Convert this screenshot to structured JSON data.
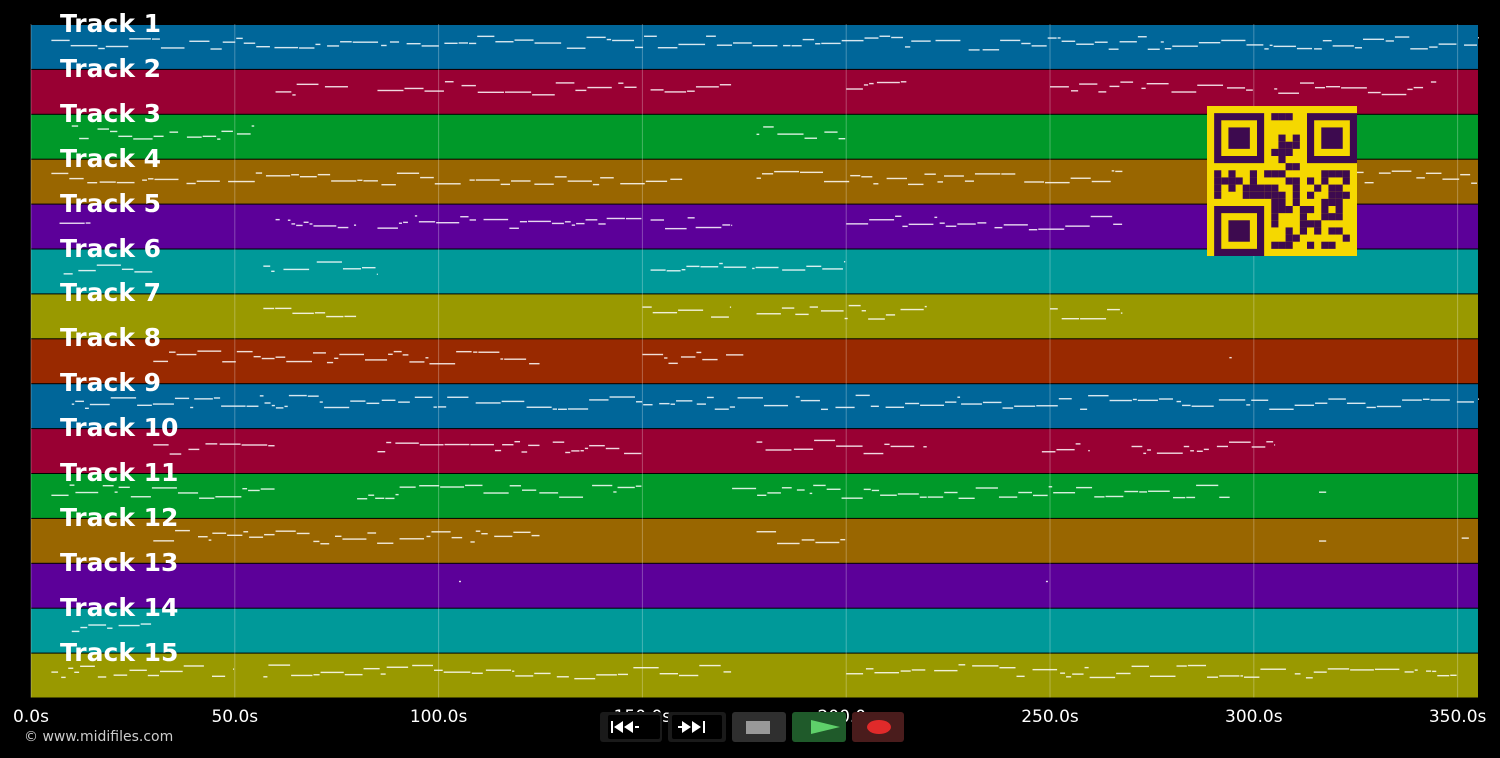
{
  "tracks": [
    {
      "label": "Track 1",
      "color": "#006699"
    },
    {
      "label": "Track 2",
      "color": "#990033"
    },
    {
      "label": "Track 3",
      "color": "#009929"
    },
    {
      "label": "Track 4",
      "color": "#996600"
    },
    {
      "label": "Track 5",
      "color": "#5c0099"
    },
    {
      "label": "Track 6",
      "color": "#009999"
    },
    {
      "label": "Track 7",
      "color": "#999900"
    },
    {
      "label": "Track 8",
      "color": "#992900"
    },
    {
      "label": "Track 9",
      "color": "#006699"
    },
    {
      "label": "Track 10",
      "color": "#990033"
    },
    {
      "label": "Track 11",
      "color": "#009929"
    },
    {
      "label": "Track 12",
      "color": "#996600"
    },
    {
      "label": "Track 13",
      "color": "#5c0099"
    },
    {
      "label": "Track 14",
      "color": "#009999"
    },
    {
      "label": "Track 15",
      "color": "#999900"
    }
  ],
  "timeline": {
    "ticks": [
      "0.0s",
      "50.0s",
      "100.0s",
      "150.0s",
      "200.0s",
      "250.0s",
      "300.0s",
      "350.0s"
    ],
    "tick_seconds": [
      0,
      50,
      100,
      150,
      200,
      250,
      300,
      350
    ],
    "max_seconds": 355
  },
  "copyright": "© www.midifiles.com",
  "controls": [
    {
      "name": "rewind-button",
      "icon": "rewind-icon"
    },
    {
      "name": "fast-forward-button",
      "icon": "fast-forward-icon"
    },
    {
      "name": "stop-button",
      "icon": "stop-icon"
    },
    {
      "name": "play-button",
      "icon": "play-icon"
    },
    {
      "name": "record-button",
      "icon": "record-icon"
    }
  ],
  "qr_code": {
    "icon": "qr-code-icon",
    "color": "#f5d800",
    "dark": "#3d0a4f"
  }
}
